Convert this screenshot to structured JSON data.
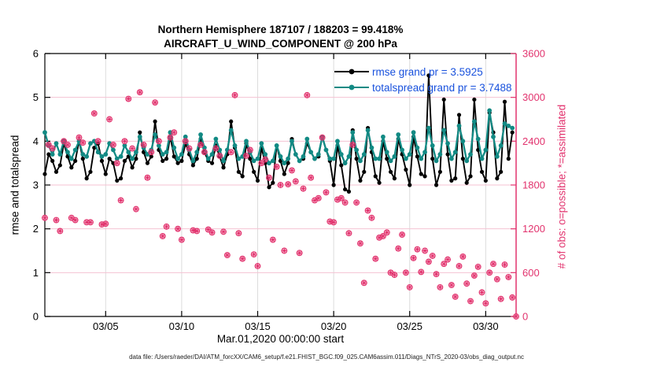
{
  "title_line1": "Northern Hemisphere 187107 / 188203 = 99.418%",
  "title_line2": "AIRCRAFT_U_WIND_COMPONENT @ 200 hPa",
  "footer": "data file: /Users/raeder/DAI/ATM_forcXX/CAM6_setup/f.e21.FHIST_BGC.f09_025.CAM6assim.011/Diags_NTrS_2020-03/obs_diag_output.nc",
  "legend": {
    "items": [
      {
        "label": "rmse grand pr = 3.5925",
        "color": "#000000"
      },
      {
        "label": "totalspread grand pr = 3.7488",
        "color": "#128a84"
      }
    ],
    "text_color": "#1851dd"
  },
  "chart_data": {
    "type": "line",
    "title": "Northern Hemisphere 187107 / 188203 = 99.418% | AIRCRAFT_U_WIND_COMPONENT @ 200 hPa",
    "xlabel": "Mar.01,2020 00:00:00 start",
    "ylabel_left": "rmse and totalspread",
    "ylabel_right": "# of obs: o=possible; *=assimilated",
    "ylim_left": [
      0,
      6
    ],
    "ylim_right": [
      0,
      3600
    ],
    "x_range_days": [
      0,
      31
    ],
    "points_per_day": 4,
    "grid": "on",
    "legend_position": "upper-center-right-inside",
    "x_ticks": [
      {
        "day": 4,
        "label": "03/05"
      },
      {
        "day": 9,
        "label": "03/10"
      },
      {
        "day": 14,
        "label": "03/15"
      },
      {
        "day": 19,
        "label": "03/20"
      },
      {
        "day": 24,
        "label": "03/25"
      },
      {
        "day": 29,
        "label": "03/30"
      }
    ],
    "y_ticks_left": [
      0,
      1,
      2,
      3,
      4,
      5,
      6
    ],
    "y_ticks_right": [
      0,
      600,
      1200,
      1800,
      2400,
      3000,
      3600
    ],
    "colors": {
      "obs": "#e2336e",
      "grid_h": "#f4c3d3",
      "grid_v": "#dcdcdc",
      "axis_left": "#000000",
      "axis_right": "#e2336e",
      "legend_text": "#1851dd"
    },
    "series": [
      {
        "name": "rmse",
        "type": "line",
        "axis": "left",
        "color": "#000000",
        "grand_pr": 3.5925,
        "values": [
          3.25,
          3.7,
          3.55,
          3.3,
          3.45,
          3.95,
          3.65,
          3.4,
          3.55,
          4.0,
          3.6,
          3.15,
          3.3,
          3.85,
          3.95,
          3.55,
          3.25,
          3.6,
          3.5,
          3.1,
          3.15,
          3.55,
          3.65,
          3.4,
          3.6,
          4.2,
          3.75,
          3.5,
          3.65,
          4.45,
          3.8,
          3.55,
          3.6,
          4.1,
          3.65,
          3.5,
          3.55,
          3.95,
          3.7,
          3.45,
          3.6,
          4.05,
          3.75,
          3.55,
          3.5,
          3.9,
          3.65,
          3.4,
          3.7,
          4.45,
          3.85,
          3.3,
          3.2,
          3.95,
          3.6,
          3.3,
          3.1,
          3.85,
          3.5,
          2.95,
          3.05,
          3.9,
          3.55,
          3.25,
          3.5,
          4.05,
          3.7,
          3.55,
          3.6,
          3.95,
          3.75,
          3.6,
          3.65,
          4.1,
          3.8,
          3.55,
          3.0,
          3.9,
          3.45,
          2.9,
          2.85,
          4.25,
          3.6,
          3.1,
          3.3,
          4.3,
          3.75,
          3.2,
          3.05,
          4.0,
          3.6,
          3.3,
          3.15,
          4.05,
          3.7,
          3.35,
          3.0,
          4.1,
          3.65,
          3.25,
          3.2,
          5.5,
          3.6,
          3.0,
          3.3,
          4.95,
          3.7,
          3.1,
          3.15,
          4.6,
          3.6,
          3.05,
          3.2,
          4.95,
          3.8,
          3.3,
          3.1,
          4.65,
          4.2,
          3.15,
          3.3,
          4.9,
          3.6,
          4.2
        ]
      },
      {
        "name": "totalspread",
        "type": "line",
        "axis": "left",
        "color": "#128a84",
        "grand_pr": 3.7488,
        "values": [
          4.2,
          3.9,
          3.7,
          3.95,
          3.7,
          4.0,
          3.75,
          3.6,
          3.8,
          4.0,
          3.7,
          3.65,
          3.95,
          4.0,
          3.75,
          3.65,
          3.7,
          3.95,
          3.8,
          3.6,
          3.65,
          3.9,
          3.75,
          3.6,
          3.75,
          4.1,
          3.85,
          3.7,
          3.8,
          4.15,
          3.9,
          3.7,
          3.75,
          4.2,
          3.85,
          3.6,
          3.7,
          4.1,
          3.8,
          3.55,
          3.75,
          4.15,
          3.85,
          3.6,
          3.7,
          4.05,
          3.8,
          3.55,
          3.8,
          4.25,
          3.9,
          3.6,
          3.65,
          4.0,
          3.75,
          3.55,
          3.6,
          3.95,
          3.7,
          3.5,
          3.55,
          3.9,
          3.65,
          3.5,
          3.6,
          4.0,
          3.7,
          3.55,
          3.65,
          4.05,
          3.75,
          3.6,
          3.7,
          4.1,
          3.8,
          3.6,
          3.6,
          4.0,
          3.7,
          3.5,
          3.65,
          4.2,
          3.8,
          3.55,
          3.7,
          4.25,
          3.85,
          3.6,
          3.6,
          4.1,
          3.75,
          3.55,
          3.65,
          4.15,
          3.8,
          3.6,
          3.7,
          4.2,
          3.85,
          3.6,
          3.75,
          4.3,
          3.9,
          3.55,
          3.7,
          4.25,
          3.95,
          3.6,
          3.75,
          4.35,
          4.0,
          3.55,
          3.7,
          4.45,
          4.05,
          3.6,
          3.8,
          4.7,
          4.1,
          3.65,
          3.9,
          4.4,
          4.35,
          4.3
        ]
      },
      {
        "name": "possible",
        "type": "scatter",
        "axis": "right",
        "color": "#e2336e",
        "marker": "o",
        "values": [
          1350,
          2350,
          2300,
          1320,
          1170,
          2400,
          2350,
          1350,
          1320,
          2450,
          2380,
          1290,
          1290,
          2780,
          2400,
          1260,
          1270,
          2700,
          2350,
          2100,
          1590,
          2400,
          2980,
          2300,
          1470,
          3070,
          2350,
          1900,
          2250,
          2930,
          2400,
          1100,
          1230,
          2450,
          2520,
          1200,
          1050,
          2400,
          2300,
          1180,
          1170,
          2350,
          2250,
          1190,
          1150,
          2300,
          2200,
          1160,
          840,
          2250,
          3030,
          1140,
          790,
          2200,
          2280,
          850,
          690,
          2100,
          2150,
          1900,
          1050,
          2050,
          1800,
          900,
          1810,
          2000,
          1850,
          870,
          1750,
          3030,
          1900,
          1590,
          1620,
          2450,
          1700,
          1300,
          1290,
          1600,
          1620,
          1560,
          1140,
          2350,
          1560,
          1000,
          460,
          1450,
          1350,
          790,
          1080,
          1100,
          1150,
          600,
          570,
          930,
          1120,
          600,
          400,
          800,
          920,
          610,
          900,
          750,
          830,
          580,
          400,
          720,
          780,
          430,
          270,
          690,
          820,
          450,
          210,
          560,
          680,
          330,
          180,
          600,
          720,
          510,
          240,
          710,
          540,
          260,
          0
        ]
      },
      {
        "name": "assimilated",
        "type": "scatter",
        "axis": "right",
        "color": "#e2336e",
        "marker": "*",
        "values": [
          1350,
          2350,
          2300,
          1320,
          1170,
          2400,
          2350,
          1350,
          1320,
          2450,
          2380,
          1290,
          1290,
          2780,
          2400,
          1260,
          1270,
          2700,
          2350,
          2100,
          1590,
          2400,
          2980,
          2300,
          1470,
          3070,
          2350,
          1900,
          2250,
          2930,
          2400,
          1100,
          1230,
          2450,
          2520,
          1200,
          1050,
          2400,
          2300,
          1180,
          1170,
          2350,
          2250,
          1190,
          1150,
          2300,
          2200,
          1160,
          840,
          2250,
          3030,
          1140,
          790,
          2200,
          2280,
          850,
          690,
          2100,
          2150,
          1900,
          1050,
          2050,
          1800,
          900,
          1810,
          2000,
          1850,
          870,
          1750,
          3030,
          1900,
          1590,
          1620,
          2450,
          1700,
          1300,
          1290,
          1600,
          1620,
          1560,
          1140,
          2350,
          1560,
          1000,
          460,
          1450,
          1350,
          790,
          1080,
          1100,
          1150,
          600,
          570,
          930,
          1120,
          600,
          400,
          800,
          920,
          610,
          900,
          750,
          830,
          580,
          400,
          720,
          780,
          430,
          270,
          690,
          820,
          450,
          210,
          560,
          680,
          330,
          180,
          600,
          720,
          510,
          240,
          710,
          540,
          260,
          0
        ]
      }
    ]
  }
}
